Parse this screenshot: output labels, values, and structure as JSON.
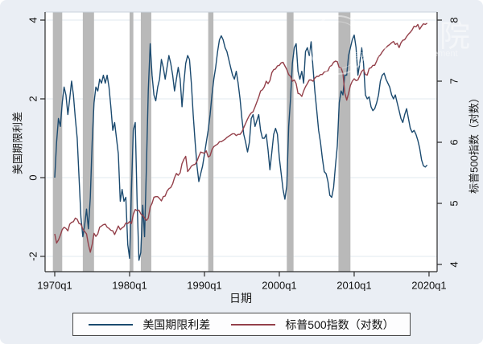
{
  "colors": {
    "background": "#eaeef4",
    "plot_background": "#ffffff",
    "gridline": "#e1e8ef",
    "axis": "#2b2b2b",
    "recession_band": "#b9b9b9",
    "spread_line": "#1b4a6f",
    "sp500_line": "#94404a",
    "watermark": "#ffffff"
  },
  "watermark": {
    "seal": "circular-seal",
    "glyph1": "院",
    "glyph2": "院",
    "latin": "ement"
  },
  "legend": {
    "items": [
      {
        "label": "美国期限利差",
        "color": "#1b4a6f"
      },
      {
        "label": "标普500指数（对数）",
        "color": "#94404a"
      }
    ]
  },
  "chart_data": {
    "type": "line",
    "title": "",
    "xlabel": "日期",
    "ylabel_left": "美国期限利差",
    "ylabel_right": "标普500指数（对数）",
    "x_start": 1970.0,
    "x_step": 0.25,
    "x_axis_range": [
      1968.71,
      2021.08
    ],
    "y_left_range": [
      -2.388,
      4.204
    ],
    "y_right_range": [
      3.882,
      8.132
    ],
    "x_ticks": [
      {
        "label": "1970q1",
        "year": 1970.0
      },
      {
        "label": "1980q1",
        "year": 1980.0
      },
      {
        "label": "1990q1",
        "year": 1990.0
      },
      {
        "label": "2000q1",
        "year": 2000.0
      },
      {
        "label": "2010q1",
        "year": 2010.0
      },
      {
        "label": "2020q1",
        "year": 2020.0
      }
    ],
    "y_left_ticks": [
      -2,
      0,
      2,
      4
    ],
    "y_right_ticks": [
      4,
      5,
      6,
      7,
      8
    ],
    "grid_on_left_ticks": true,
    "legend_position": "bottom",
    "recessions": [
      [
        1969.75,
        1971.0
      ],
      [
        1973.75,
        1975.25
      ],
      [
        1980.0,
        1980.5
      ],
      [
        1981.5,
        1982.9
      ],
      [
        1990.5,
        1991.2
      ],
      [
        2001.0,
        2001.9
      ],
      [
        2007.9,
        2009.5
      ]
    ],
    "series": [
      {
        "name": "美国期限利差",
        "axis": "left",
        "color": "#1b4a6f",
        "values": [
          0.0,
          0.9,
          1.5,
          1.3,
          1.9,
          2.3,
          2.1,
          1.6,
          2.0,
          2.45,
          2.1,
          1.5,
          1.0,
          0.0,
          -1.0,
          -1.5,
          -1.2,
          -0.8,
          -1.3,
          -0.5,
          0.9,
          1.9,
          2.3,
          2.2,
          2.5,
          2.4,
          2.6,
          2.4,
          2.6,
          2.3,
          1.8,
          1.2,
          1.4,
          1.0,
          0.6,
          -0.6,
          -0.3,
          -0.6,
          -0.5,
          -1.7,
          -2.05,
          -0.3,
          1.2,
          1.4,
          -0.6,
          -2.1,
          -1.9,
          -0.7,
          -1.5,
          0.3,
          2.2,
          3.4,
          2.6,
          2.1,
          1.95,
          2.3,
          2.5,
          3.0,
          2.8,
          2.5,
          2.8,
          3.1,
          2.9,
          2.6,
          2.2,
          2.5,
          2.8,
          2.5,
          1.8,
          2.4,
          2.9,
          3.1,
          3.0,
          2.4,
          1.6,
          0.9,
          0.3,
          -0.1,
          0.1,
          0.3,
          0.6,
          0.9,
          1.2,
          1.6,
          2.1,
          2.5,
          2.8,
          3.2,
          3.5,
          3.6,
          3.5,
          3.3,
          3.2,
          3.0,
          2.8,
          2.6,
          2.5,
          2.7,
          2.4,
          2.0,
          1.5,
          1.1,
          0.9,
          0.65,
          0.9,
          1.5,
          1.6,
          1.3,
          1.45,
          1.6,
          1.2,
          1.0,
          1.0,
          1.1,
          0.7,
          0.2,
          0.65,
          1.1,
          1.25,
          1.1,
          0.5,
          0.1,
          -0.3,
          -0.55,
          -0.2,
          1.3,
          2.0,
          2.9,
          3.3,
          3.4,
          2.7,
          2.5,
          2.7,
          2.4,
          3.2,
          3.3,
          3.1,
          3.45,
          2.8,
          2.2,
          1.7,
          1.2,
          0.9,
          0.5,
          0.15,
          0.1,
          -0.1,
          -0.45,
          -0.5,
          -0.25,
          0.3,
          0.8,
          1.9,
          2.2,
          2.1,
          2.6,
          2.6,
          3.1,
          3.3,
          3.5,
          3.62,
          3.3,
          2.6,
          2.9,
          3.3,
          2.9,
          2.1,
          2.0,
          2.05,
          1.8,
          1.7,
          1.75,
          1.9,
          2.1,
          2.45,
          2.6,
          2.65,
          2.5,
          2.4,
          2.3,
          2.1,
          2.0,
          2.1,
          1.9,
          1.7,
          1.5,
          1.4,
          1.6,
          1.75,
          1.5,
          1.25,
          1.15,
          1.2,
          1.1,
          0.95,
          0.75,
          0.45,
          0.3,
          0.27,
          0.32
        ]
      },
      {
        "name": "标普500指数（对数）",
        "axis": "right",
        "color": "#94404a",
        "values": [
          4.5,
          4.35,
          4.4,
          4.48,
          4.57,
          4.61,
          4.59,
          4.55,
          4.66,
          4.69,
          4.7,
          4.76,
          4.74,
          4.67,
          4.66,
          4.58,
          4.54,
          4.5,
          4.33,
          4.2,
          4.33,
          4.51,
          4.46,
          4.5,
          4.61,
          4.63,
          4.65,
          4.66,
          4.61,
          4.59,
          4.56,
          4.55,
          4.49,
          4.56,
          4.63,
          4.57,
          4.6,
          4.62,
          4.68,
          4.67,
          4.7,
          4.67,
          4.82,
          4.9,
          4.88,
          4.89,
          4.83,
          4.8,
          4.76,
          4.72,
          4.76,
          4.94,
          5.0,
          5.1,
          5.11,
          5.11,
          5.08,
          5.04,
          5.11,
          5.12,
          5.2,
          5.24,
          5.26,
          5.32,
          5.42,
          5.49,
          5.46,
          5.5,
          5.65,
          5.72,
          5.77,
          5.52,
          5.56,
          5.61,
          5.63,
          5.64,
          5.69,
          5.77,
          5.84,
          5.83,
          5.82,
          5.86,
          5.76,
          5.78,
          5.88,
          5.93,
          5.95,
          5.97,
          6.01,
          6.01,
          6.03,
          6.05,
          6.08,
          6.1,
          6.12,
          6.14,
          6.14,
          6.11,
          6.13,
          6.13,
          6.17,
          6.24,
          6.31,
          6.38,
          6.44,
          6.48,
          6.5,
          6.58,
          6.66,
          6.74,
          6.84,
          6.86,
          6.91,
          7.0,
          6.96,
          7.01,
          7.14,
          7.19,
          7.2,
          7.25,
          7.26,
          7.3,
          7.31,
          7.25,
          7.19,
          7.11,
          7.08,
          7.0,
          7.02,
          6.96,
          6.8,
          6.79,
          6.75,
          6.84,
          6.91,
          6.96,
          7.02,
          7.02,
          7.0,
          7.05,
          7.08,
          7.08,
          7.11,
          7.11,
          7.15,
          7.16,
          7.17,
          7.24,
          7.26,
          7.31,
          7.33,
          7.32,
          7.22,
          7.22,
          7.13,
          6.81,
          6.69,
          6.8,
          6.93,
          7.0,
          7.04,
          7.01,
          7.02,
          7.09,
          7.16,
          7.19,
          7.11,
          7.1,
          7.21,
          7.22,
          7.26,
          7.26,
          7.33,
          7.4,
          7.43,
          7.48,
          7.52,
          7.55,
          7.58,
          7.6,
          7.63,
          7.65,
          7.6,
          7.62,
          7.55,
          7.63,
          7.67,
          7.68,
          7.73,
          7.77,
          7.8,
          7.84,
          7.9,
          7.89,
          7.93,
          7.85,
          7.9,
          7.94,
          7.93,
          7.95
        ]
      }
    ]
  }
}
